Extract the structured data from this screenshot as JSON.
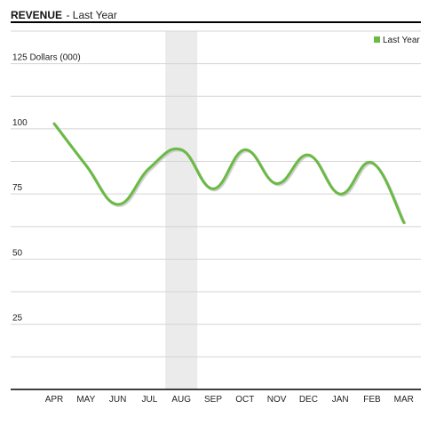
{
  "header": {
    "title": "REVENUE",
    "subtitle": "- Last Year"
  },
  "chart_data": {
    "type": "line",
    "title": "REVENUE",
    "subtitle": "- Last Year",
    "ylabel": "Dollars (000)",
    "categories": [
      "APR",
      "MAY",
      "JUN",
      "JUL",
      "AUG",
      "SEP",
      "OCT",
      "NOV",
      "DEC",
      "JAN",
      "FEB",
      "MAR"
    ],
    "series": [
      {
        "name": "Last Year",
        "color": "#6aba44",
        "values": [
          102,
          86,
          71,
          85,
          92,
          77,
          92,
          79,
          90,
          75,
          87,
          64
        ]
      }
    ],
    "ylim": [
      0,
      137.5
    ],
    "yticks": [
      0,
      12.5,
      25,
      37.5,
      50,
      62.5,
      75,
      87.5,
      100,
      112.5,
      125,
      137.5
    ],
    "ytick_labels": [
      {
        "value": 125,
        "text": "125",
        "unit": "Dollars (000)"
      },
      {
        "value": 100,
        "text": "100"
      },
      {
        "value": 75,
        "text": "75"
      },
      {
        "value": 50,
        "text": "50"
      },
      {
        "value": 25,
        "text": "25"
      }
    ],
    "highlight_category": "AUG",
    "grid": true,
    "legend": {
      "position": "top-right",
      "entries": [
        "Last Year"
      ]
    }
  }
}
